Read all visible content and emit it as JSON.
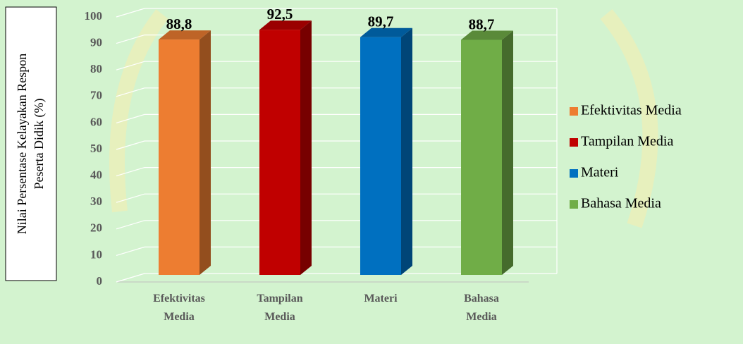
{
  "chart_data": {
    "type": "bar3d",
    "y_label": [
      "Nilai Persentase Kelayakan Respon",
      "Peserta Didik (%)"
    ],
    "categories": [
      "Efektivitas Media",
      "Tampilan Media",
      "Materi",
      "Bahasa Media"
    ],
    "values": [
      88.8,
      92.5,
      89.7,
      88.7
    ],
    "value_labels": [
      "88,8",
      "92,5",
      "89,7",
      "88,7"
    ],
    "colors": [
      "#ed7d31",
      "#c00000",
      "#0070c0",
      "#70ad47"
    ],
    "ylim": [
      0,
      100
    ],
    "yticks": [
      0,
      10,
      20,
      30,
      40,
      50,
      60,
      70,
      80,
      90,
      100
    ],
    "grid": true,
    "legend": "right"
  }
}
